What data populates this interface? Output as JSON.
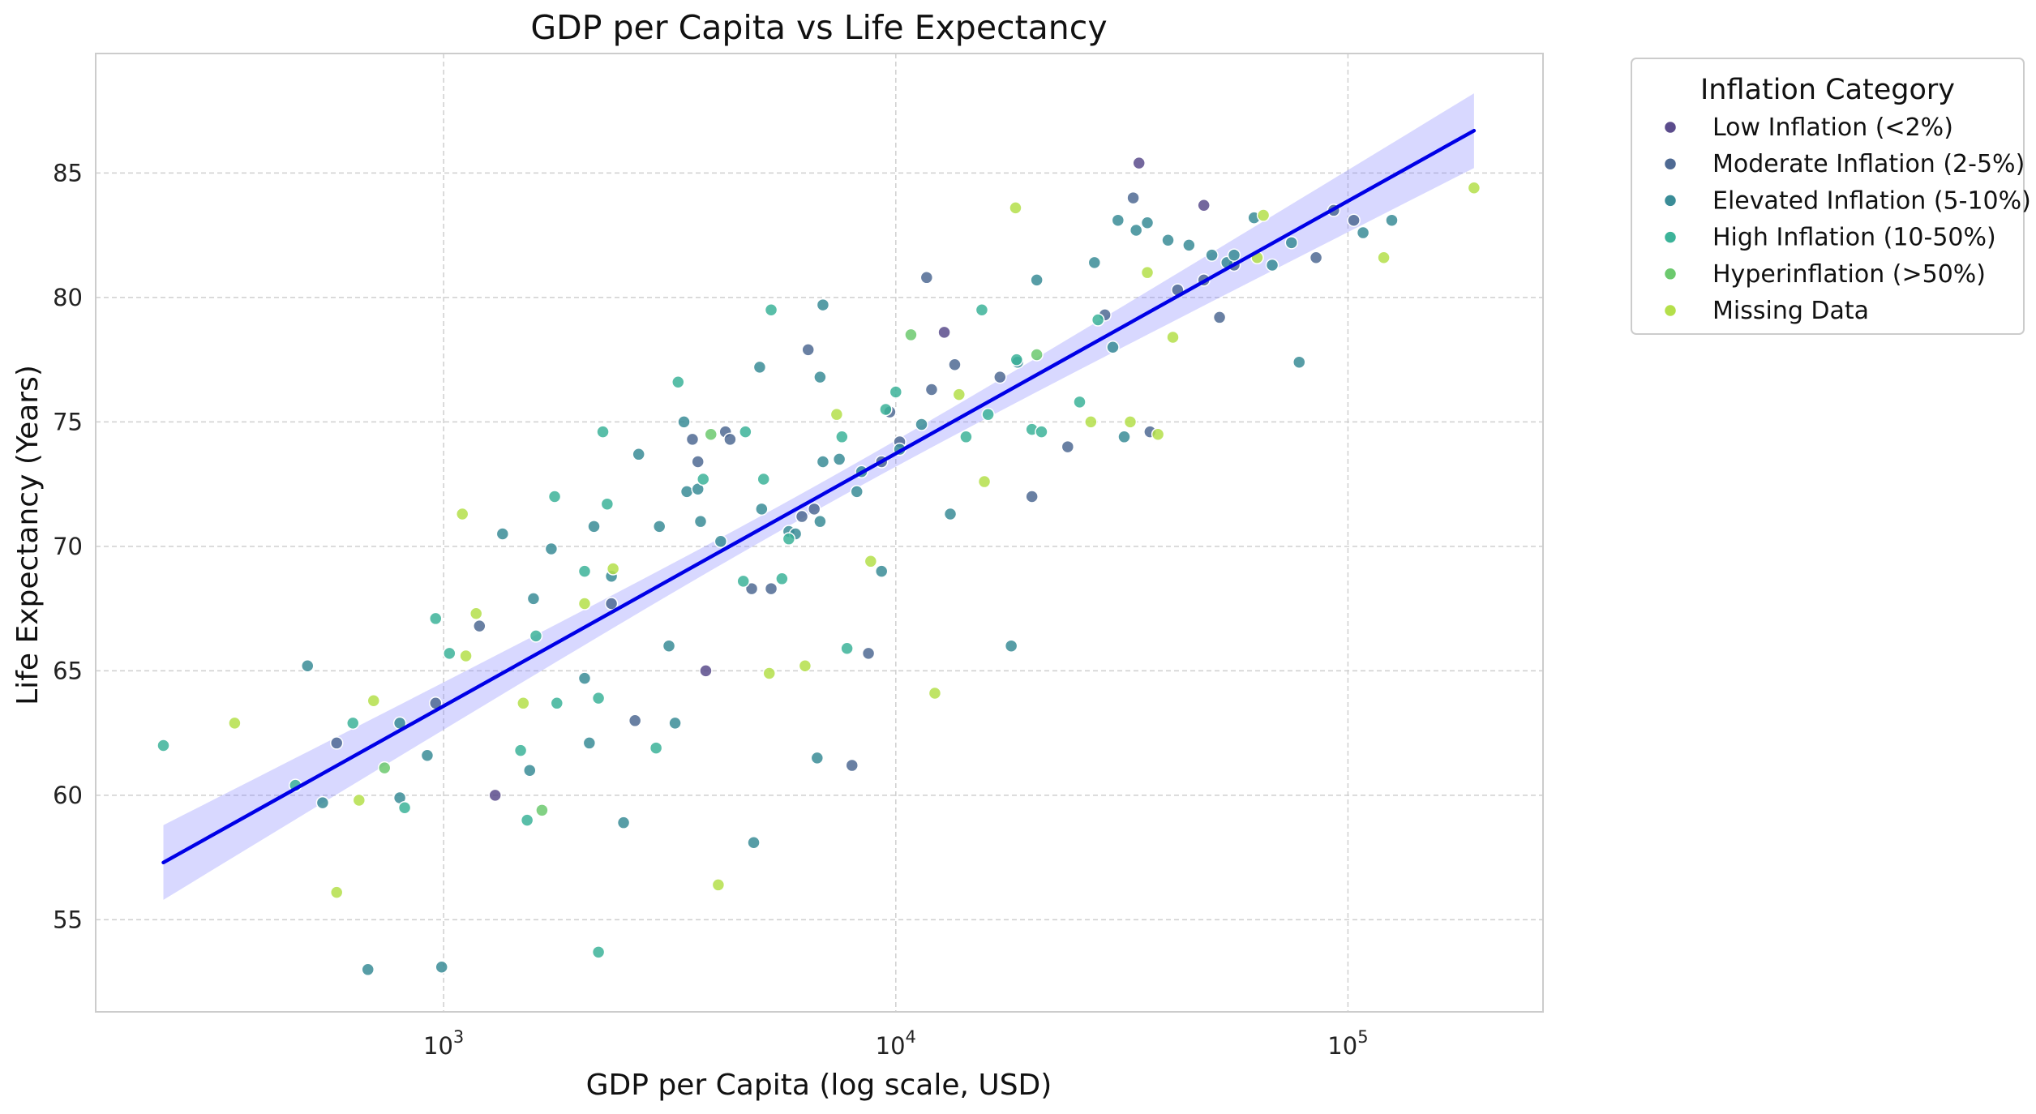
{
  "chart_data": {
    "type": "scatter",
    "title": "GDP per Capita vs Life Expectancy",
    "xlabel": "GDP per Capita (log scale, USD)",
    "ylabel": "Life Expectancy (Years)",
    "x_scale": "log",
    "xlim": [
      170,
      270000
    ],
    "ylim": [
      51.3,
      89.8
    ],
    "x_ticks": [
      {
        "value": 1000,
        "base": "10",
        "exp": "3"
      },
      {
        "value": 10000,
        "base": "10",
        "exp": "4"
      },
      {
        "value": 100000,
        "base": "10",
        "exp": "5"
      }
    ],
    "y_ticks": [
      55,
      60,
      65,
      70,
      75,
      80,
      85
    ],
    "grid": true,
    "legend": {
      "title": "Inflation Category",
      "placement": "outside-top-right",
      "entries": [
        {
          "name": "Low Inflation (<2%)",
          "color": "#5b4c8c"
        },
        {
          "name": "Moderate Inflation (2-5%)",
          "color": "#4f6a93"
        },
        {
          "name": "Elevated Inflation (5-10%)",
          "color": "#3a8c97"
        },
        {
          "name": "High Inflation (10-50%)",
          "color": "#3cb399"
        },
        {
          "name": "Hyperinflation (>50%)",
          "color": "#6cc96e"
        },
        {
          "name": "Missing Data",
          "color": "#b4df4a"
        }
      ]
    },
    "regression": {
      "x": [
        240,
        190000
      ],
      "y": [
        57.3,
        86.7
      ],
      "color": "#0000e6",
      "band_color": "#7f7fff",
      "band_half_width_ends": 1.5,
      "band_half_width_center": 0.5
    },
    "series": [
      {
        "name": "Low Inflation (<2%)",
        "color": "#5b4c8c",
        "points": [
          [
            1300,
            60.0
          ],
          [
            3800,
            65.0
          ],
          [
            12800,
            78.6
          ],
          [
            34500,
            85.4
          ],
          [
            48000,
            83.7
          ]
        ]
      },
      {
        "name": "Moderate Inflation (2-5%)",
        "color": "#4f6a93",
        "points": [
          [
            580,
            62.1
          ],
          [
            960,
            63.7
          ],
          [
            1200,
            66.8
          ],
          [
            2350,
            67.7
          ],
          [
            2650,
            63.0
          ],
          [
            3550,
            74.3
          ],
          [
            4200,
            74.6
          ],
          [
            4300,
            74.3
          ],
          [
            4800,
            68.3
          ],
          [
            5300,
            68.3
          ],
          [
            6400,
            77.9
          ],
          [
            6600,
            71.5
          ],
          [
            8000,
            61.2
          ],
          [
            8700,
            65.7
          ],
          [
            9300,
            73.4
          ],
          [
            9700,
            75.4
          ],
          [
            11700,
            80.8
          ],
          [
            12000,
            76.3
          ],
          [
            13500,
            77.3
          ],
          [
            17000,
            76.8
          ],
          [
            20000,
            72.0
          ],
          [
            24000,
            74.0
          ],
          [
            29000,
            79.3
          ],
          [
            33500,
            84.0
          ],
          [
            36500,
            74.6
          ],
          [
            42000,
            80.3
          ],
          [
            48000,
            80.7
          ],
          [
            52000,
            79.2
          ],
          [
            56000,
            81.3
          ],
          [
            85000,
            81.6
          ],
          [
            93000,
            83.5
          ],
          [
            103000,
            83.1
          ],
          [
            3650,
            73.4
          ],
          [
            6200,
            71.2
          ],
          [
            10200,
            74.2
          ]
        ]
      },
      {
        "name": "Elevated Inflation (5-10%)",
        "color": "#3a8c97",
        "points": [
          [
            500,
            65.2
          ],
          [
            540,
            59.7
          ],
          [
            680,
            53.0
          ],
          [
            800,
            62.9
          ],
          [
            800,
            59.9
          ],
          [
            920,
            61.6
          ],
          [
            990,
            53.1
          ],
          [
            1350,
            70.5
          ],
          [
            1550,
            61.0
          ],
          [
            1580,
            67.9
          ],
          [
            1730,
            69.9
          ],
          [
            2050,
            64.7
          ],
          [
            2100,
            62.1
          ],
          [
            2150,
            70.8
          ],
          [
            2350,
            68.8
          ],
          [
            2500,
            58.9
          ],
          [
            2700,
            73.7
          ],
          [
            3000,
            70.8
          ],
          [
            3150,
            66.0
          ],
          [
            3250,
            62.9
          ],
          [
            3400,
            75.0
          ],
          [
            3450,
            72.2
          ],
          [
            3650,
            72.3
          ],
          [
            3700,
            71.0
          ],
          [
            4100,
            70.2
          ],
          [
            4850,
            58.1
          ],
          [
            5000,
            77.2
          ],
          [
            5050,
            71.5
          ],
          [
            5800,
            70.6
          ],
          [
            6000,
            70.5
          ],
          [
            6700,
            61.5
          ],
          [
            6800,
            71.0
          ],
          [
            6900,
            73.4
          ],
          [
            7500,
            73.5
          ],
          [
            8200,
            72.2
          ],
          [
            8400,
            73.0
          ],
          [
            9300,
            69.0
          ],
          [
            10200,
            73.9
          ],
          [
            11400,
            74.9
          ],
          [
            13200,
            71.3
          ],
          [
            18000,
            66.0
          ],
          [
            18600,
            77.4
          ],
          [
            20500,
            80.7
          ],
          [
            27500,
            81.4
          ],
          [
            30200,
            78.0
          ],
          [
            31000,
            83.1
          ],
          [
            32000,
            74.4
          ],
          [
            34000,
            82.7
          ],
          [
            36000,
            83.0
          ],
          [
            40000,
            82.3
          ],
          [
            44500,
            82.1
          ],
          [
            50000,
            81.7
          ],
          [
            54000,
            81.4
          ],
          [
            56000,
            81.7
          ],
          [
            62000,
            83.2
          ],
          [
            68000,
            81.3
          ],
          [
            75000,
            82.2
          ],
          [
            78000,
            77.4
          ],
          [
            108000,
            82.6
          ],
          [
            125000,
            83.1
          ],
          [
            6800,
            76.8
          ],
          [
            6900,
            79.7
          ]
        ]
      },
      {
        "name": "High Inflation (10-50%)",
        "color": "#3cb399",
        "points": [
          [
            240,
            62.0
          ],
          [
            470,
            60.4
          ],
          [
            630,
            62.9
          ],
          [
            820,
            59.5
          ],
          [
            960,
            67.1
          ],
          [
            1030,
            65.7
          ],
          [
            1480,
            61.8
          ],
          [
            1530,
            59.0
          ],
          [
            1600,
            66.4
          ],
          [
            1760,
            72.0
          ],
          [
            1780,
            63.7
          ],
          [
            2050,
            69.0
          ],
          [
            2200,
            63.9
          ],
          [
            2250,
            74.6
          ],
          [
            2300,
            71.7
          ],
          [
            2950,
            61.9
          ],
          [
            3300,
            76.6
          ],
          [
            3750,
            72.7
          ],
          [
            4600,
            68.6
          ],
          [
            4650,
            74.6
          ],
          [
            5100,
            72.7
          ],
          [
            5300,
            79.5
          ],
          [
            5600,
            68.7
          ],
          [
            5800,
            70.3
          ],
          [
            7600,
            74.4
          ],
          [
            7800,
            65.9
          ],
          [
            9500,
            75.5
          ],
          [
            10000,
            76.2
          ],
          [
            14300,
            74.4
          ],
          [
            16000,
            75.3
          ],
          [
            15500,
            79.5
          ],
          [
            18500,
            77.5
          ],
          [
            20000,
            74.7
          ],
          [
            21000,
            74.6
          ],
          [
            25500,
            75.8
          ],
          [
            28000,
            79.1
          ],
          [
            2200,
            53.7
          ]
        ]
      },
      {
        "name": "Hyperinflation (>50%)",
        "color": "#6cc96e",
        "points": [
          [
            740,
            61.1
          ],
          [
            1650,
            59.4
          ],
          [
            3900,
            74.5
          ],
          [
            10800,
            78.5
          ],
          [
            20500,
            77.7
          ]
        ]
      },
      {
        "name": "Missing Data",
        "color": "#b4df4a",
        "points": [
          [
            345,
            62.9
          ],
          [
            580,
            56.1
          ],
          [
            650,
            59.8
          ],
          [
            700,
            63.8
          ],
          [
            1100,
            71.3
          ],
          [
            1120,
            65.6
          ],
          [
            1180,
            67.3
          ],
          [
            1500,
            63.7
          ],
          [
            2050,
            67.7
          ],
          [
            2370,
            69.1
          ],
          [
            4050,
            56.4
          ],
          [
            5250,
            64.9
          ],
          [
            6300,
            65.2
          ],
          [
            7400,
            75.3
          ],
          [
            8800,
            69.4
          ],
          [
            12200,
            64.1
          ],
          [
            13800,
            76.1
          ],
          [
            15700,
            72.6
          ],
          [
            18400,
            83.6
          ],
          [
            27000,
            75.0
          ],
          [
            33000,
            75.0
          ],
          [
            36000,
            81.0
          ],
          [
            38000,
            74.5
          ],
          [
            41000,
            78.4
          ],
          [
            63000,
            81.6
          ],
          [
            65000,
            83.3
          ],
          [
            120000,
            81.6
          ],
          [
            190000,
            84.4
          ]
        ]
      }
    ]
  }
}
